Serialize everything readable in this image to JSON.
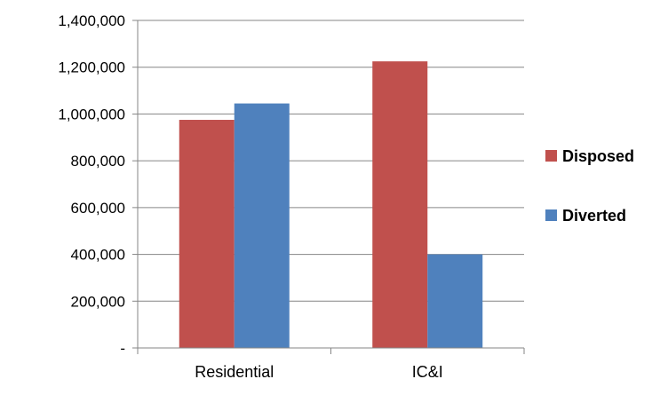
{
  "chart_data": {
    "type": "bar",
    "categories": [
      "Residential",
      "IC&I"
    ],
    "series": [
      {
        "name": "Disposed",
        "values": [
          975000,
          1225000
        ],
        "color": "#c0504d"
      },
      {
        "name": "Diverted",
        "values": [
          1045000,
          400000
        ],
        "color": "#4f81bd"
      }
    ],
    "ylim": [
      0,
      1400000
    ],
    "yticks": [
      {
        "value": 0,
        "label": "-"
      },
      {
        "value": 200000,
        "label": "200,000"
      },
      {
        "value": 400000,
        "label": "400,000"
      },
      {
        "value": 600000,
        "label": "600,000"
      },
      {
        "value": 800000,
        "label": "800,000"
      },
      {
        "value": 1000000,
        "label": "1,000,000"
      },
      {
        "value": 1200000,
        "label": "1,200,000"
      },
      {
        "value": 1400000,
        "label": "1,400,000"
      }
    ],
    "grid": true,
    "legend_position": "right",
    "title": "",
    "xlabel": "",
    "ylabel": ""
  }
}
